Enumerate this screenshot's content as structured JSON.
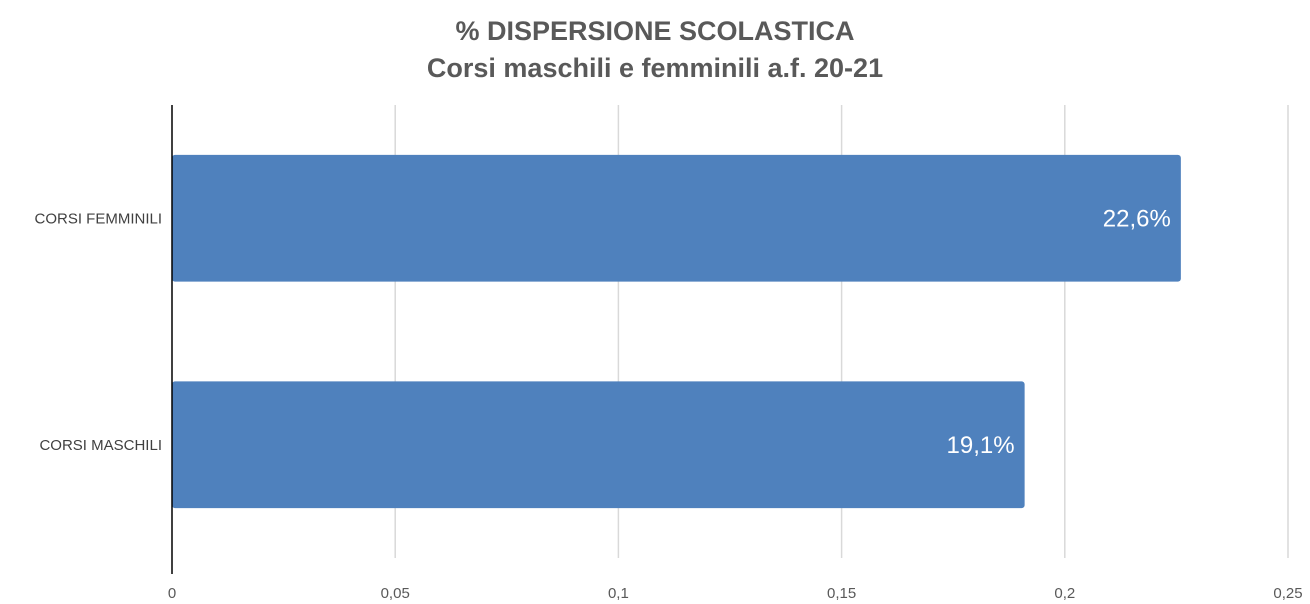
{
  "chart_data": {
    "type": "bar",
    "orientation": "horizontal",
    "title": "% DISPERSIONE SCOLASTICA",
    "subtitle": "Corsi maschili e femminili a.f. 20-21",
    "categories": [
      "CORSI FEMMINILI",
      "CORSI MASCHILI"
    ],
    "values": [
      0.226,
      0.191
    ],
    "data_labels": [
      "22,6%",
      "19,1%"
    ],
    "xlim": [
      0,
      0.25
    ],
    "x_ticks": [
      0,
      0.05,
      0.1,
      0.15,
      0.2,
      0.25
    ],
    "x_tick_labels": [
      "0",
      "0,05",
      "0,1",
      "0,15",
      "0,2",
      "0,25"
    ],
    "grid": "vertical",
    "legend": "none",
    "bar_color": "#4f81bd"
  }
}
